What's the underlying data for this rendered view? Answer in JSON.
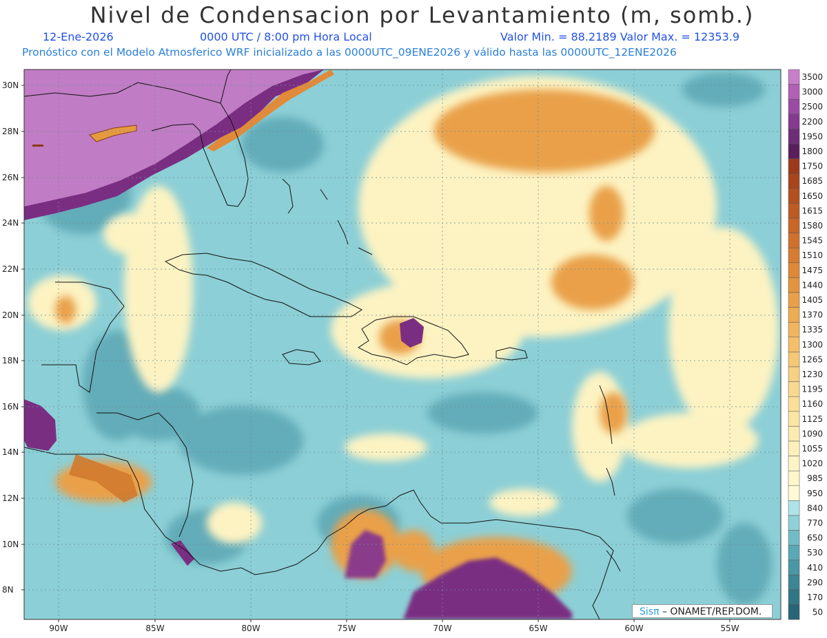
{
  "header": {
    "title": "Nivel de Condensacion por Levantamiento (m, somb.)",
    "date": "12-Ene-2026",
    "time": "0000 UTC / 8:00 pm Hora Local",
    "minmax": "Valor Min. = 88.2189   Valor Max. = 12353.9",
    "init": "Pronóstico con el Modelo Atmosferico WRF inicializado a las 0000UTC_09ENE2026 y válido hasta las  0000UTC_12ENE2026"
  },
  "axes": {
    "lon_ticks": [
      "90W",
      "85W",
      "80W",
      "75W",
      "70W",
      "65W",
      "60W",
      "55W"
    ],
    "lat_ticks": [
      "30N",
      "28N",
      "26N",
      "24N",
      "22N",
      "20N",
      "18N",
      "16N",
      "14N",
      "12N",
      "10N",
      "8N"
    ]
  },
  "colorbar": {
    "labels": [
      "3500",
      "3000",
      "2500",
      "2200",
      "1950",
      "1800",
      "1750",
      "1685",
      "1650",
      "1615",
      "1580",
      "1545",
      "1510",
      "1475",
      "1440",
      "1405",
      "1370",
      "1335",
      "1300",
      "1265",
      "1230",
      "1195",
      "1160",
      "1125",
      "1090",
      "1055",
      "1020",
      "985",
      "950",
      "840",
      "770",
      "650",
      "530",
      "410",
      "290",
      "170",
      "50"
    ],
    "colors": [
      "#c77fc9",
      "#b25fb6",
      "#9a4ba4",
      "#853a90",
      "#6f2d79",
      "#5a1e5e",
      "#9c3a1b",
      "#a8451c",
      "#b3501f",
      "#bd5b22",
      "#c76627",
      "#cf712c",
      "#d77c32",
      "#de8838",
      "#e4943f",
      "#e9a048",
      "#edab52",
      "#f0b55d",
      "#f3bf69",
      "#f5c876",
      "#f7d183",
      "#f8d98f",
      "#fadf9a",
      "#fbe5a4",
      "#fcebb0",
      "#fdf0bb",
      "#fdf4c4",
      "#fef7cc",
      "#fefad6",
      "#aee4e8",
      "#8fd1d8",
      "#72bcc7",
      "#5ba9b6",
      "#4a97a5",
      "#3d8695",
      "#317685",
      "#266676"
    ],
    "brand": "Sisπ",
    "org": " – ONAMET/REP.DOM."
  },
  "legend_colors": {
    "ocean": "#8ccfd6",
    "land_coast": "#111111"
  }
}
